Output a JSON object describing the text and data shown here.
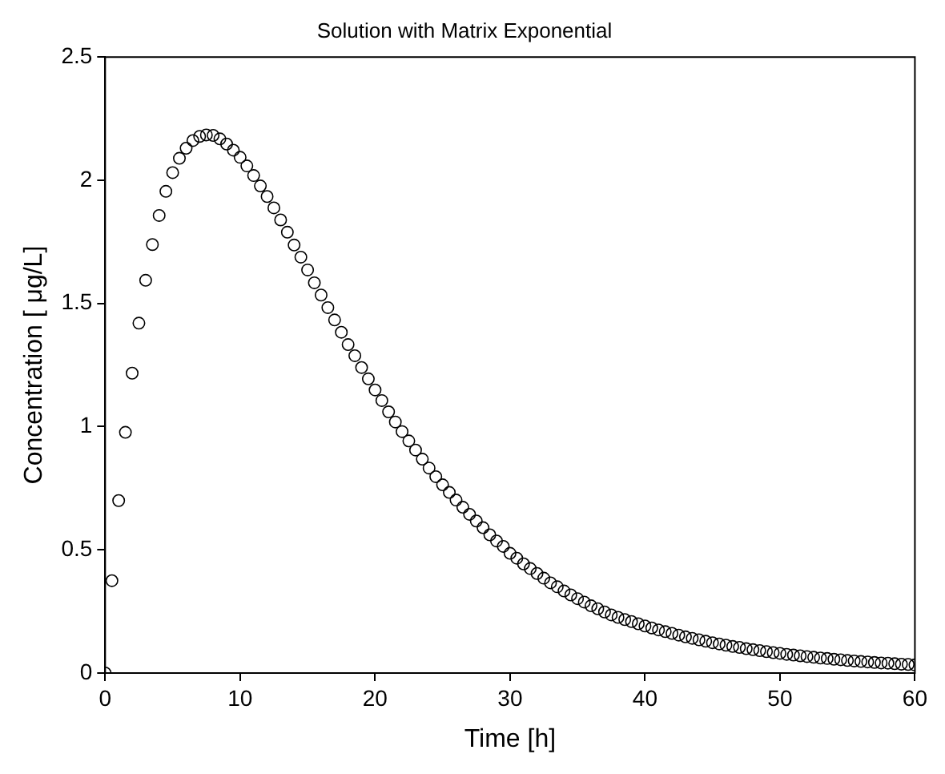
{
  "chart_data": {
    "type": "scatter",
    "title": "Solution with Matrix Exponential",
    "xlabel": "Time [h]",
    "ylabel": "Concentration [ μg/L]",
    "x": [
      0,
      0.5,
      1,
      1.5,
      2,
      2.5,
      3,
      3.5,
      4,
      4.5,
      5,
      5.5,
      6,
      6.5,
      7,
      7.5,
      8,
      8.5,
      9,
      9.5,
      10,
      10.5,
      11,
      11.5,
      12,
      12.5,
      13,
      13.5,
      14,
      14.5,
      15,
      15.5,
      16,
      16.5,
      17,
      17.5,
      18,
      18.5,
      19,
      19.5,
      20,
      20.5,
      21,
      21.5,
      22,
      22.5,
      23,
      23.5,
      24,
      24.5,
      25,
      25.5,
      26,
      26.5,
      27,
      27.5,
      28,
      28.5,
      29,
      29.5,
      30,
      30.5,
      31,
      31.5,
      32,
      32.5,
      33,
      33.5,
      34,
      34.5,
      35,
      35.5,
      36,
      36.5,
      37,
      37.5,
      38,
      38.5,
      39,
      39.5,
      40,
      40.5,
      41,
      41.5,
      42,
      42.5,
      43,
      43.5,
      44,
      44.5,
      45,
      45.5,
      46,
      46.5,
      47,
      47.5,
      48,
      48.5,
      49,
      49.5,
      50,
      50.5,
      51,
      51.5,
      52,
      52.5,
      53,
      53.5,
      54,
      54.5,
      55,
      55.5,
      56,
      56.5,
      57,
      57.5,
      58,
      58.5,
      59,
      59.5,
      60
    ],
    "series": [
      {
        "color": "#000000",
        "values": [
          0,
          0.375,
          0.7,
          0.977,
          1.217,
          1.42,
          1.594,
          1.739,
          1.857,
          1.955,
          2.031,
          2.089,
          2.13,
          2.161,
          2.178,
          2.184,
          2.182,
          2.168,
          2.147,
          2.122,
          2.093,
          2.058,
          2.019,
          1.977,
          1.934,
          1.888,
          1.839,
          1.789,
          1.737,
          1.688,
          1.636,
          1.584,
          1.534,
          1.483,
          1.433,
          1.383,
          1.333,
          1.288,
          1.24,
          1.194,
          1.149,
          1.106,
          1.06,
          1.019,
          0.98,
          0.942,
          0.905,
          0.868,
          0.832,
          0.797,
          0.764,
          0.733,
          0.702,
          0.673,
          0.644,
          0.617,
          0.59,
          0.561,
          0.536,
          0.514,
          0.486,
          0.466,
          0.443,
          0.424,
          0.404,
          0.385,
          0.366,
          0.35,
          0.333,
          0.317,
          0.302,
          0.288,
          0.273,
          0.261,
          0.248,
          0.236,
          0.226,
          0.217,
          0.209,
          0.2,
          0.191,
          0.183,
          0.175,
          0.168,
          0.161,
          0.154,
          0.147,
          0.141,
          0.135,
          0.129,
          0.123,
          0.118,
          0.113,
          0.108,
          0.104,
          0.099,
          0.095,
          0.091,
          0.087,
          0.083,
          0.08,
          0.076,
          0.073,
          0.07,
          0.067,
          0.064,
          0.061,
          0.059,
          0.056,
          0.054,
          0.051,
          0.049,
          0.047,
          0.045,
          0.043,
          0.041,
          0.04,
          0.038,
          0.036,
          0.035,
          0.033
        ]
      }
    ],
    "xlim": [
      0,
      60
    ],
    "xticks": [
      0,
      10,
      20,
      30,
      40,
      50,
      60
    ],
    "ylim": [
      0,
      2.5
    ],
    "yticks": [
      0,
      0.5,
      1,
      1.5,
      2,
      2.5
    ],
    "grid": false,
    "legend": false,
    "marker": "circle"
  }
}
